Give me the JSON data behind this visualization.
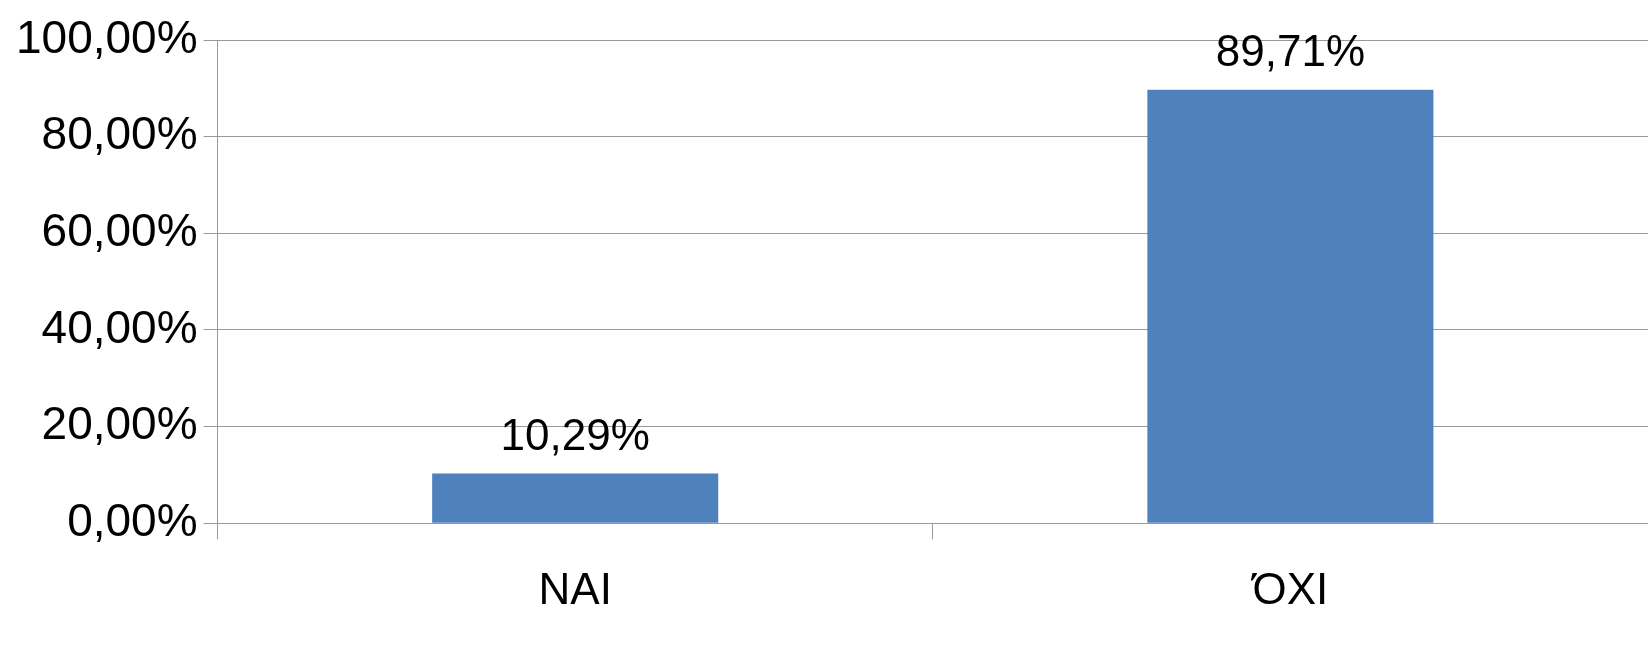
{
  "chart_data": {
    "type": "bar",
    "categories": [
      "ΝΑΙ",
      "ΌΧΙ"
    ],
    "values": [
      10.29,
      89.71
    ],
    "color": "#4f81bd",
    "value_labels": [
      "10,29%",
      "89,71%"
    ],
    "ylim": [
      0,
      100
    ],
    "yticks": [
      {
        "value": 0,
        "label": "0,00%"
      },
      {
        "value": 20,
        "label": "20,00%"
      },
      {
        "value": 40,
        "label": "40,00%"
      },
      {
        "value": 60,
        "label": "60,00%"
      },
      {
        "value": 80,
        "label": "80,00%"
      },
      {
        "value": 100,
        "label": "100,00%"
      }
    ],
    "grid": "y",
    "legend": false
  }
}
